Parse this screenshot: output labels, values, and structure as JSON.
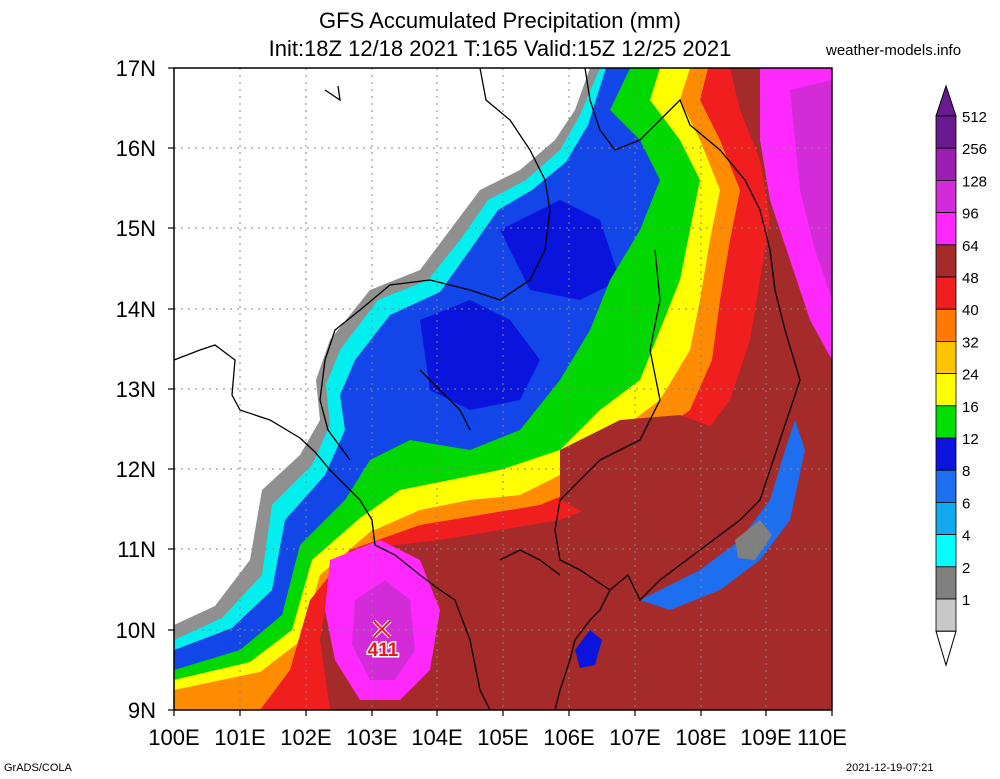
{
  "title_line1": "GFS Accumulated Precipitation (mm)",
  "title_line2": "Init:18Z 12/18 2021 T:165 Valid:15Z 12/25 2021",
  "site": "weather-models.info",
  "footer_left": "GrADS/COLA",
  "footer_right": "2021-12-19-07:21",
  "lat_labels": [
    "17N",
    "16N",
    "15N",
    "14N",
    "13N",
    "12N",
    "11N",
    "10N",
    "9N"
  ],
  "lon_labels": [
    "100E",
    "101E",
    "102E",
    "103E",
    "104E",
    "105E",
    "106E",
    "107E",
    "108E",
    "109E",
    "110E"
  ],
  "max_marker": {
    "label": "411",
    "lon": 103.2,
    "lat": 10.0
  },
  "legend": [
    {
      "label": "512",
      "color": "#6a1a8f"
    },
    {
      "label": "256",
      "color": "#9a1fb0"
    },
    {
      "label": "128",
      "color": "#d42bd8"
    },
    {
      "label": "96",
      "color": "#ff28ff"
    },
    {
      "label": "64",
      "color": "#a52a2a"
    },
    {
      "label": "48",
      "color": "#f01e1e"
    },
    {
      "label": "40",
      "color": "#ff7a00"
    },
    {
      "label": "32",
      "color": "#ffc400"
    },
    {
      "label": "24",
      "color": "#ffff00"
    },
    {
      "label": "16",
      "color": "#00e000"
    },
    {
      "label": "12",
      "color": "#0a14dc"
    },
    {
      "label": "8",
      "color": "#1e6ef0"
    },
    {
      "label": "6",
      "color": "#12aaee"
    },
    {
      "label": "4",
      "color": "#00ffff"
    },
    {
      "label": "2",
      "color": "#808080"
    },
    {
      "label": "1",
      "color": "#c8c8c8"
    }
  ]
}
